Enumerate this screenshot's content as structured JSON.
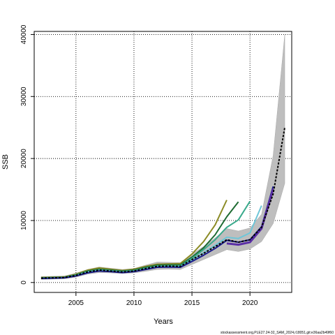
{
  "chart_data": {
    "type": "line",
    "xlabel": "Years",
    "ylabel": "SSB",
    "xlim": [
      2001.4,
      2023.6
    ],
    "ylim": [
      -1600,
      40500
    ],
    "x_ticks": [
      2005,
      2010,
      2015,
      2020
    ],
    "y_ticks": [
      0,
      10000,
      20000,
      30000,
      40000
    ],
    "grid": true,
    "footer": "stockassessment.org,PLE27.24-32_SAM_2024,r18051,git:e36aa2b49f60",
    "confidence_band": {
      "color": "#bebebe",
      "x": [
        2002,
        2003,
        2004,
        2005,
        2006,
        2007,
        2008,
        2009,
        2010,
        2011,
        2012,
        2013,
        2014,
        2015,
        2016,
        2017,
        2018,
        2019,
        2020,
        2021,
        2022,
        2023
      ],
      "lower": [
        500,
        550,
        600,
        850,
        1350,
        1600,
        1550,
        1450,
        1550,
        1800,
        2100,
        2150,
        2100,
        2900,
        3700,
        4500,
        5300,
        5000,
        5400,
        6600,
        9500,
        16000
      ],
      "upper": [
        950,
        1000,
        1050,
        1500,
        2100,
        2500,
        2300,
        2100,
        2250,
        2800,
        3300,
        3250,
        3200,
        4600,
        5800,
        7200,
        8700,
        8300,
        8800,
        11000,
        20500,
        40000
      ]
    },
    "series": [
      {
        "color": "#8b8b25",
        "x": [
          2002,
          2003,
          2004,
          2005,
          2006,
          2007,
          2008,
          2009,
          2010,
          2011,
          2012,
          2013,
          2014,
          2015,
          2016,
          2017,
          2018
        ],
        "values": [
          800,
          850,
          900,
          1350,
          2000,
          2350,
          2150,
          1950,
          2150,
          2600,
          2950,
          3000,
          3050,
          4600,
          6600,
          9300,
          13300
        ]
      },
      {
        "color": "#1e6b32",
        "x": [
          2002,
          2003,
          2004,
          2005,
          2006,
          2007,
          2008,
          2009,
          2010,
          2011,
          2012,
          2013,
          2014,
          2015,
          2016,
          2017,
          2018,
          2019
        ],
        "values": [
          750,
          800,
          850,
          1250,
          1850,
          2150,
          2000,
          1850,
          2000,
          2450,
          2800,
          2850,
          2850,
          4100,
          5600,
          7700,
          10600,
          13000
        ]
      },
      {
        "color": "#3aaa8c",
        "x": [
          2002,
          2003,
          2004,
          2005,
          2006,
          2007,
          2008,
          2009,
          2010,
          2011,
          2012,
          2013,
          2014,
          2015,
          2016,
          2017,
          2018,
          2019,
          2020
        ],
        "values": [
          700,
          750,
          800,
          1200,
          1750,
          2050,
          1900,
          1750,
          1900,
          2300,
          2650,
          2700,
          2700,
          3900,
          5300,
          6900,
          8900,
          10100,
          13100
        ]
      },
      {
        "color": "#6ec6d8",
        "x": [
          2002,
          2003,
          2004,
          2005,
          2006,
          2007,
          2008,
          2009,
          2010,
          2011,
          2012,
          2013,
          2014,
          2015,
          2016,
          2017,
          2018,
          2019,
          2020,
          2021
        ],
        "values": [
          650,
          700,
          750,
          1100,
          1650,
          1950,
          1800,
          1650,
          1800,
          2200,
          2500,
          2550,
          2500,
          3600,
          4800,
          6000,
          7300,
          7100,
          8000,
          12400
        ]
      },
      {
        "color": "#1a1a8c",
        "x": [
          2002,
          2003,
          2004,
          2005,
          2006,
          2007,
          2008,
          2009,
          2010,
          2011,
          2012,
          2013,
          2014,
          2015,
          2016,
          2017,
          2018,
          2019,
          2020,
          2021,
          2022
        ],
        "values": [
          650,
          700,
          750,
          1050,
          1550,
          1850,
          1750,
          1600,
          1750,
          2100,
          2450,
          2500,
          2450,
          3400,
          4400,
          5500,
          6800,
          6500,
          6900,
          9000,
          15500
        ]
      },
      {
        "color": "#5a2ea6",
        "width": 3,
        "x": [
          2018,
          2019,
          2020,
          2021,
          2022
        ],
        "values": [
          6300,
          6100,
          6500,
          8700,
          15100
        ]
      },
      {
        "color": "#000000",
        "dashed": true,
        "x": [
          2002,
          2003,
          2004,
          2005,
          2006,
          2007,
          2008,
          2009,
          2010,
          2011,
          2012,
          2013,
          2014,
          2015,
          2016,
          2017,
          2018,
          2019,
          2020,
          2021,
          2022,
          2023
        ],
        "values": [
          700,
          750,
          800,
          1150,
          1700,
          2000,
          1850,
          1700,
          1850,
          2250,
          2600,
          2650,
          2600,
          3700,
          4700,
          5800,
          6900,
          6500,
          6900,
          8900,
          14300,
          25000
        ]
      }
    ]
  }
}
